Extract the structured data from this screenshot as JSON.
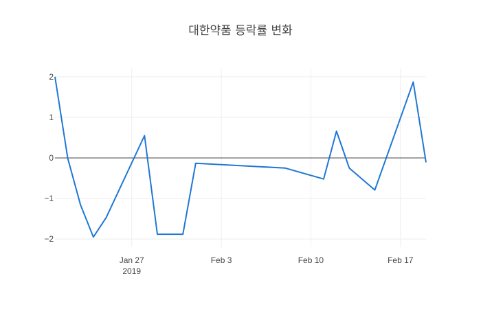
{
  "chart_data": {
    "type": "line",
    "title": "대한약품 등락률 변화",
    "xlabel": "",
    "ylabel": "",
    "grid": true,
    "zero_line": true,
    "xlim": [
      "2019-01-21",
      "2019-02-19"
    ],
    "ylim": [
      -2.2,
      2.2
    ],
    "x_ticks": [
      {
        "date": "2019-01-27",
        "label": "Jan 27",
        "sublabel": "2019"
      },
      {
        "date": "2019-02-03",
        "label": "Feb 3",
        "sublabel": ""
      },
      {
        "date": "2019-02-10",
        "label": "Feb 10",
        "sublabel": ""
      },
      {
        "date": "2019-02-17",
        "label": "Feb 17",
        "sublabel": ""
      }
    ],
    "y_ticks": [
      {
        "value": 2,
        "label": "2"
      },
      {
        "value": 1,
        "label": "1"
      },
      {
        "value": 0,
        "label": "0"
      },
      {
        "value": -1,
        "label": "−1"
      },
      {
        "value": -2,
        "label": "−2"
      }
    ],
    "series": [
      {
        "color": "#1f77d4",
        "x": [
          "2019-01-21",
          "2019-01-22",
          "2019-01-23",
          "2019-01-24",
          "2019-01-25",
          "2019-01-28",
          "2019-01-29",
          "2019-01-31",
          "2019-02-01",
          "2019-02-08",
          "2019-02-11",
          "2019-02-12",
          "2019-02-13",
          "2019-02-15",
          "2019-02-18",
          "2019-02-19"
        ],
        "y": [
          2.0,
          -0.01,
          -1.16,
          -1.95,
          -1.47,
          0.55,
          -1.88,
          -1.88,
          -0.13,
          -0.25,
          -0.52,
          0.66,
          -0.25,
          -0.79,
          1.87,
          -0.11
        ]
      }
    ]
  }
}
